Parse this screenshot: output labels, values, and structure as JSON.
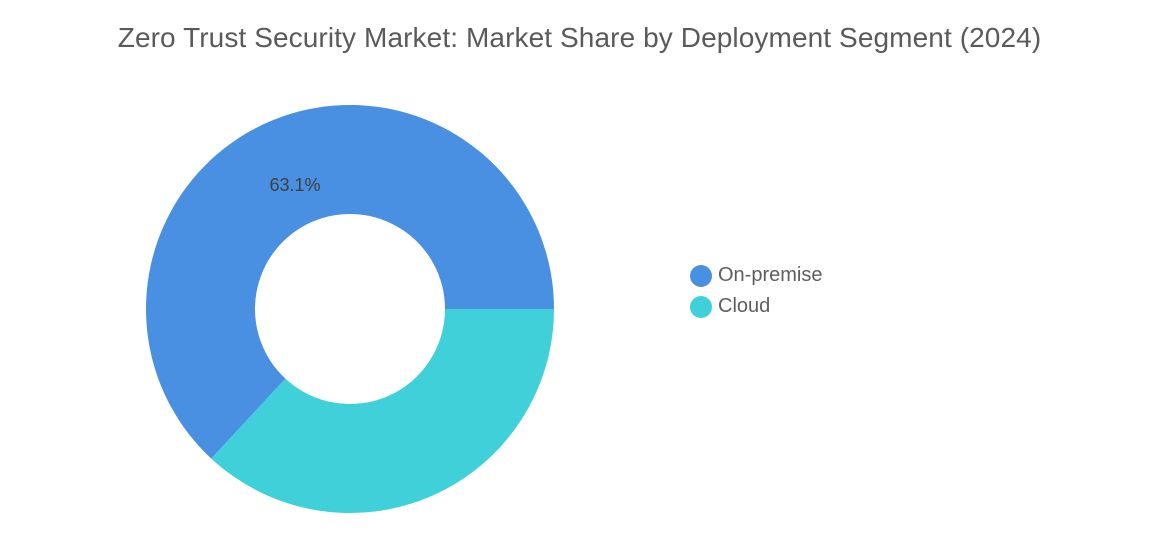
{
  "chart_data": {
    "type": "pie",
    "subtype": "donut",
    "title": "Zero Trust Security Market: Market Share by Deployment Segment (2024)",
    "categories": [
      "On-premise",
      "Cloud"
    ],
    "values": [
      63.1,
      36.9
    ],
    "unit": "%",
    "data_labels": [
      "63.1%",
      ""
    ],
    "colors": [
      "#4a90e2",
      "#3fd0da"
    ],
    "legend_position": "right"
  }
}
